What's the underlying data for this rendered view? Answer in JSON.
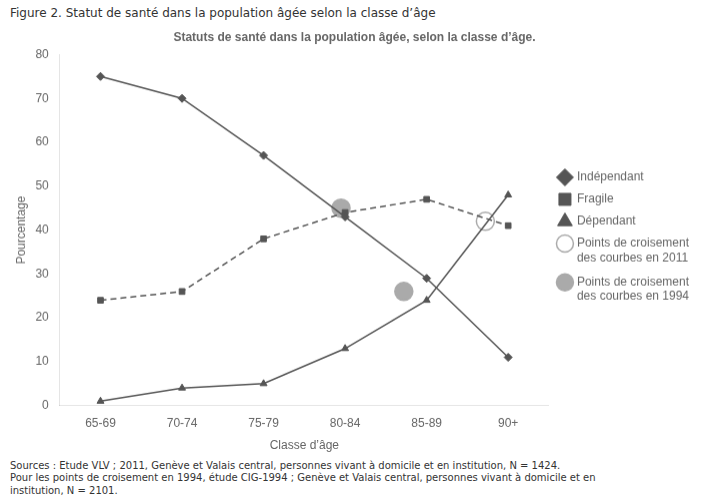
{
  "chart_data": {
    "type": "line",
    "title": "Statuts de santé dans la population âgée, selon la classe d’âge.",
    "subtitle": "Figure 2. Statut de santé dans la population âgée selon la classe d’âge",
    "footnote": [
      "Sources : Etude VLV ; 2011, Genève et Valais central, personnes vivant à domicile et en institution, N = 1424.",
      "Pour les points de croisement en 1994, étude CIG-1994 ; Genève et Valais central, personnes vivant à domicile et en",
      "institution, N = 2101."
    ],
    "x_label": "Classe d’âge",
    "y_label": "Pourcentage",
    "categories": [
      "65-69",
      "70-74",
      "75-79",
      "80-84",
      "85-89",
      "90+"
    ],
    "series": [
      {
        "name": "Indépendant",
        "color": "#555555",
        "marker": "diamond",
        "line_style": "solid",
        "values": [
          75,
          70,
          57,
          43,
          29,
          11
        ]
      },
      {
        "name": "Fragile",
        "color": "#555555",
        "marker": "square",
        "line_style": "dashed",
        "values": [
          24,
          26,
          38,
          44,
          47,
          41
        ]
      },
      {
        "name": "Dépendant",
        "color": "#555555",
        "marker": "triangle",
        "line_style": "solid",
        "values": [
          1,
          4,
          5,
          13,
          24,
          48
        ]
      },
      {
        "name": "Points de croisement\ndes courbes en 2011",
        "type": "scatter",
        "color": "#aaaaaa",
        "marker": "circle_open",
        "x": [
          4.72
        ],
        "values": [
          42
        ]
      },
      {
        "name": "Points de croisement\ndes courbes en 1994",
        "type": "scatter",
        "color": "#aaaaaa",
        "marker": "circle",
        "x": [
          2.95,
          3.72
        ],
        "values": [
          45,
          26
        ]
      }
    ],
    "ylim": [
      0,
      80
    ],
    "yticks": [
      0,
      10,
      20,
      30,
      40,
      50,
      60,
      70,
      80
    ],
    "grid": false,
    "legend": "right"
  }
}
